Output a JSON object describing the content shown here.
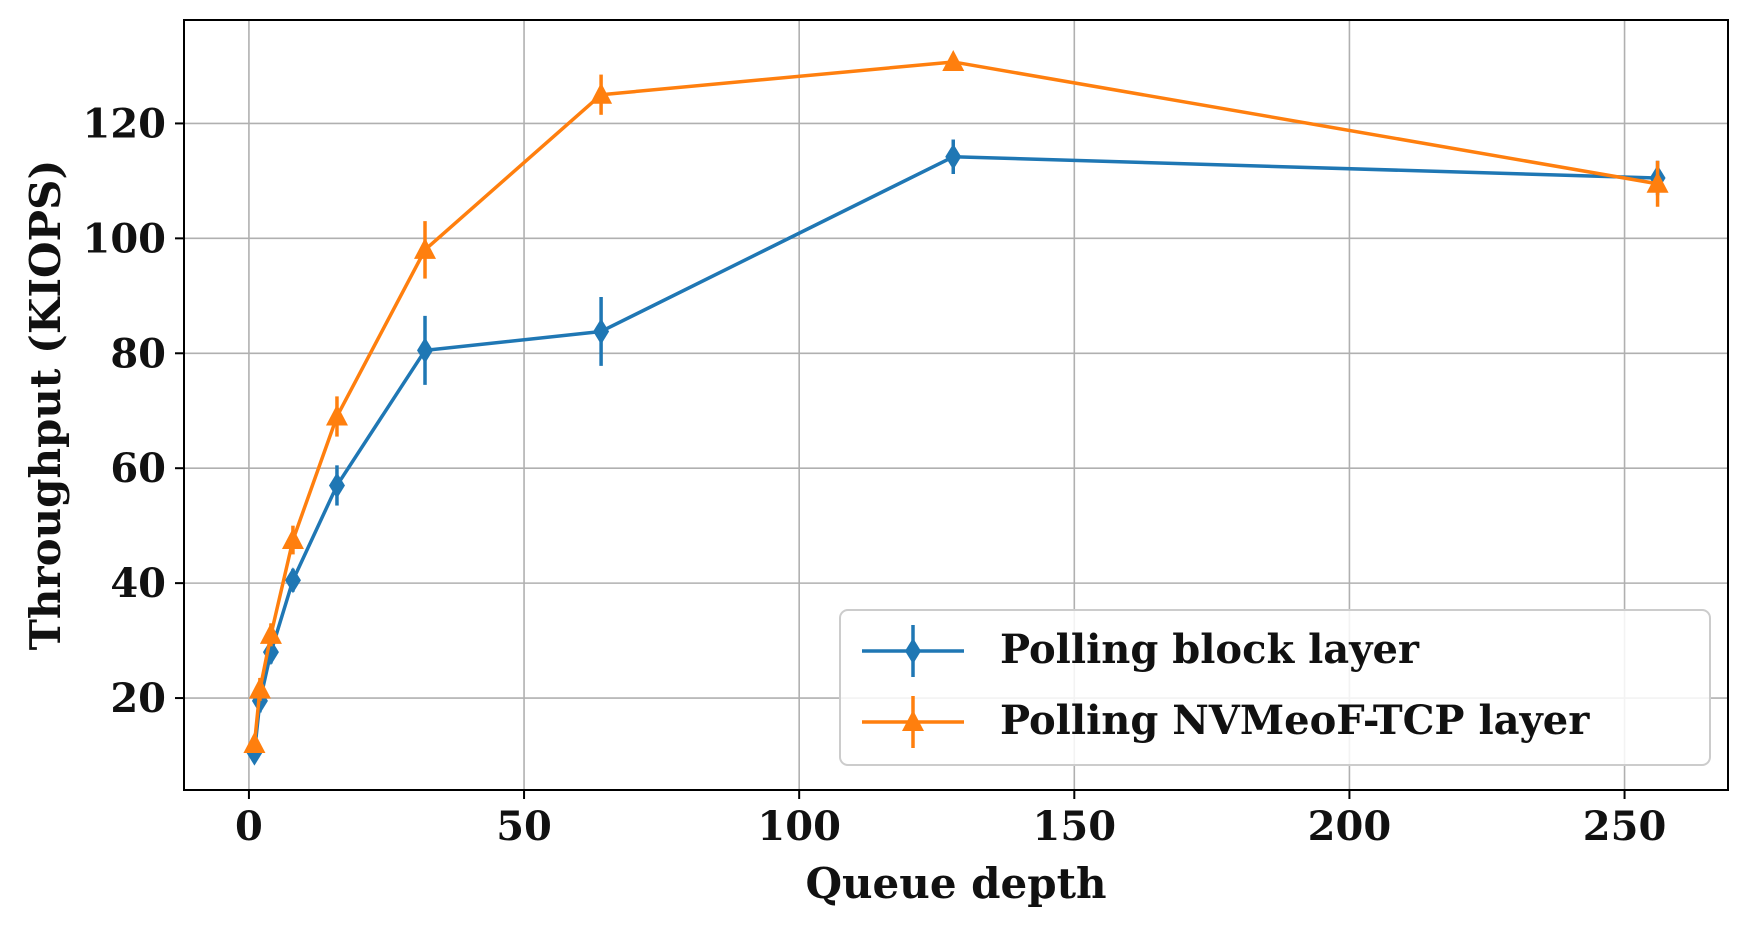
{
  "chart_data": {
    "type": "line",
    "xlabel": "Queue depth",
    "ylabel": "Throughput (KIOPS)",
    "xlim": [
      -11.8,
      268.8
    ],
    "ylim": [
      4,
      138
    ],
    "x_ticks": [
      0,
      50,
      100,
      150,
      200,
      250
    ],
    "y_ticks": [
      20,
      40,
      60,
      80,
      100,
      120
    ],
    "grid": true,
    "legend_position": "lower-right",
    "series": [
      {
        "name": "Polling block layer",
        "color": "#1f77b4",
        "marker": "diamond",
        "x": [
          1,
          2,
          4,
          8,
          16,
          32,
          64,
          128,
          256
        ],
        "y": [
          10.5,
          19.5,
          28,
          40.5,
          57,
          80.5,
          83.8,
          114.2,
          110.5
        ],
        "err": [
          1.5,
          2,
          2,
          2,
          3.5,
          6,
          6,
          3,
          3
        ]
      },
      {
        "name": "Polling NVMeoF-TCP layer",
        "color": "#ff7f0e",
        "marker": "triangle",
        "x": [
          1,
          2,
          4,
          8,
          16,
          32,
          64,
          128,
          256
        ],
        "y": [
          12,
          21.5,
          31,
          47.5,
          69,
          98,
          125,
          130.7,
          109.5
        ],
        "err": [
          1.5,
          2,
          2,
          2.5,
          3.5,
          5,
          3.5,
          1,
          4
        ]
      }
    ]
  }
}
